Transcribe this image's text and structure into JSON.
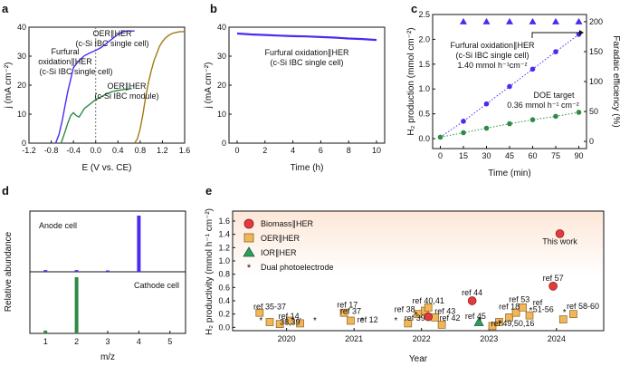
{
  "colors": {
    "purple": "#4a2cf0",
    "teal": "#1f6f8b",
    "green": "#2e8b45",
    "gold": "#a07a10",
    "biomass": "#e23b3b",
    "oer": "#f2b65a",
    "ior": "#2e9c5a",
    "dual": "#2f2fd8",
    "band_top": "#fde7d8"
  },
  "chart_data": [
    {
      "panel": "a",
      "type": "line",
      "xlabel": "E (V vs. CE)",
      "ylabel": "j (mA cm⁻²)",
      "xlim": [
        -1.2,
        1.6
      ],
      "ylim": [
        0,
        40
      ],
      "xticks": [
        "-1.2",
        "-0.8",
        "-0.4",
        "0.0",
        "0.4",
        "0.8",
        "1.2",
        "1.6"
      ],
      "yticks": [
        "0",
        "10",
        "20",
        "30",
        "40"
      ],
      "annotations": [
        "OER∥HER",
        "(c-Si IBC single cell)",
        "Furfural",
        "oxidation∥HER",
        "(c-Si IBC single cell)",
        "OER∥HER",
        "(c-Si IBC module)"
      ],
      "series": [
        {
          "name": "Furfural oxidation∥HER (c-Si IBC single cell)",
          "x": [
            -0.72,
            -0.66,
            -0.6,
            -0.55,
            -0.5,
            -0.45,
            -0.4,
            -0.3,
            -0.2,
            -0.1,
            0.0,
            0.1,
            0.2,
            0.3,
            0.4,
            0.45,
            0.48,
            0.5,
            0.55,
            0.6,
            0.7
          ],
          "y": [
            0,
            3,
            8,
            13,
            18,
            22,
            26,
            28.5,
            30.2,
            31.2,
            32,
            33,
            34.5,
            36,
            37.5,
            38,
            38.3,
            38.5,
            38.6,
            38.7,
            38.7
          ]
        },
        {
          "name": "OER∥HER (c-Si IBC single cell)",
          "x": [
            0.7,
            0.75,
            0.8,
            0.85,
            0.9,
            0.95,
            1.0,
            1.05,
            1.1,
            1.15,
            1.2,
            1.25,
            1.3,
            1.35,
            1.4,
            1.45,
            1.5,
            1.6
          ],
          "y": [
            0,
            1.5,
            5,
            10,
            16,
            21,
            25,
            28.5,
            31,
            33.5,
            35,
            36.2,
            37,
            37.6,
            38,
            38.2,
            38.4,
            38.5
          ]
        },
        {
          "name": "OER∥HER (c-Si IBC module)",
          "x": [
            -0.62,
            -0.55,
            -0.5,
            -0.45,
            -0.4,
            -0.35,
            -0.3,
            -0.25,
            -0.2,
            -0.1,
            0.0,
            0.1,
            0.2,
            0.3,
            0.35,
            0.4,
            0.5,
            0.6,
            0.65
          ],
          "y": [
            0,
            4,
            7,
            9.5,
            10.5,
            9.5,
            9,
            10.5,
            12,
            13.5,
            15,
            16,
            17,
            17.8,
            18,
            18.2,
            18.5,
            18.7,
            18.8
          ]
        }
      ]
    },
    {
      "panel": "b",
      "type": "line",
      "xlabel": "Time (h)",
      "ylabel": "j (mA cm⁻²)",
      "xlim": [
        0,
        10
      ],
      "ylim": [
        0,
        40
      ],
      "xticks": [
        "0",
        "2",
        "4",
        "6",
        "8",
        "10"
      ],
      "yticks": [
        "0",
        "10",
        "20",
        "30",
        "40"
      ],
      "annotations": [
        "Furfural oxidation∥HER",
        "(c-Si IBC single cell)"
      ],
      "series": [
        {
          "name": "Furfural oxidation∥HER",
          "x": [
            0,
            1,
            2,
            3,
            4,
            5,
            6,
            7,
            8,
            9,
            10
          ],
          "y": [
            37.8,
            37.5,
            37.3,
            37.1,
            36.9,
            36.8,
            36.6,
            36.4,
            36.1,
            35.9,
            35.6
          ]
        }
      ]
    },
    {
      "panel": "c",
      "type": "scatter",
      "xlabel": "Time (min)",
      "ylabel": "H₂ production (mmol cm⁻²)",
      "ylabel_right": "Faradaic efficiency (%)",
      "xlim": [
        -5,
        95
      ],
      "ylim": [
        -0.2,
        2.5
      ],
      "ylim_right": [
        -12,
        212
      ],
      "xticks": [
        "0",
        "15",
        "30",
        "45",
        "60",
        "75",
        "90"
      ],
      "yticks": [
        "0.0",
        "0.5",
        "1.0",
        "1.5",
        "2.0",
        "2.5"
      ],
      "yticks_right": [
        "0",
        "50",
        "100",
        "150",
        "200"
      ],
      "annotations": [
        "Furfural oxidation∥HER",
        "(c-Si IBC single cell)",
        "1.40 mmol h⁻¹cm⁻²",
        "DOE target",
        "0.36 mmol h⁻¹ cm⁻²"
      ],
      "series": [
        {
          "name": "Furfural oxidation∥HER H₂ production",
          "x": [
            0,
            15,
            30,
            45,
            60,
            75,
            90
          ],
          "y": [
            0.03,
            0.35,
            0.7,
            1.05,
            1.4,
            1.75,
            2.1
          ]
        },
        {
          "name": "DOE target",
          "x": [
            0,
            15,
            30,
            45,
            60,
            75,
            90
          ],
          "y": [
            0.03,
            0.12,
            0.21,
            0.3,
            0.38,
            0.45,
            0.53
          ]
        },
        {
          "name": "Faradaic efficiency",
          "x": [
            15,
            30,
            45,
            60,
            75,
            90
          ],
          "y": [
            200,
            200,
            200,
            200,
            200,
            200
          ]
        }
      ]
    },
    {
      "panel": "d",
      "type": "bar",
      "xlabel": "m/z",
      "ylabel": "Relative abundance",
      "xlim": [
        0.5,
        5.5
      ],
      "xticks": [
        "1",
        "2",
        "3",
        "4",
        "5"
      ],
      "series": [
        {
          "name": "Anode cell",
          "x": [
            1,
            2,
            3,
            4
          ],
          "y": [
            3,
            3,
            2,
            100
          ]
        },
        {
          "name": "Cathode cell",
          "x": [
            1,
            2
          ],
          "y": [
            5,
            100
          ]
        }
      ]
    },
    {
      "panel": "e",
      "type": "scatter",
      "xlabel": "Year",
      "ylabel": "H₂ productivity (mmol h⁻¹ cm⁻²)",
      "xlim": [
        2019.2,
        2024.7
      ],
      "ylim": [
        -0.05,
        1.75
      ],
      "xticks": [
        "2020",
        "2021",
        "2022",
        "2023",
        "2024"
      ],
      "yticks": [
        "0.0",
        "0.2",
        "0.4",
        "0.6",
        "0.8",
        "1.0",
        "1.2",
        "1.4",
        "1.6"
      ],
      "legend": [
        "Biomass∥HER",
        "OER∥HER",
        "IOR∥HER",
        "Dual photoelectrode"
      ],
      "series": [
        {
          "name": "Biomass∥HER",
          "x": [
            2022.1,
            2022.75,
            2023.95,
            2024.05
          ],
          "y": [
            0.16,
            0.4,
            0.62,
            1.41
          ]
        },
        {
          "name": "OER∥HER",
          "x": [
            2019.6,
            2019.75,
            2019.9,
            2020.05,
            2020.2,
            2020.85,
            2020.95,
            2021.8,
            2021.95,
            2022.05,
            2022.1,
            2022.2,
            2022.3,
            2023.05,
            2023.15,
            2023.3,
            2023.4,
            2023.5,
            2023.6,
            2024.1,
            2024.25
          ],
          "y": [
            0.22,
            0.08,
            0.05,
            0.1,
            0.06,
            0.22,
            0.1,
            0.06,
            0.2,
            0.25,
            0.3,
            0.15,
            0.04,
            0.02,
            0.08,
            0.15,
            0.22,
            0.3,
            0.18,
            0.12,
            0.2
          ]
        },
        {
          "name": "IOR∥HER",
          "x": [
            2022.85
          ],
          "y": [
            0.08
          ]
        },
        {
          "name": "Dual photoelectrode",
          "x": [
            2019.7,
            2020.5,
            2021.2,
            2021.7,
            2022.0,
            2022.95,
            2023.25,
            2023.7,
            2024.2
          ],
          "y": [
            0.1,
            0.1,
            0.1,
            0.1,
            0.18,
            0.1,
            0.05,
            0.25,
            0.22
          ]
        }
      ],
      "annotations": [
        "This work",
        "ref 57",
        "ref 44",
        "ref 53",
        "ref 18",
        "ref",
        "51-56",
        "ref 58-60",
        "ref 45",
        "ref 49,50,16",
        "ref 40,41",
        "ref 43",
        "ref 42",
        "ref 38",
        "ref 39",
        "ref 17",
        "ref 37",
        "ref 12",
        "ref 35-37",
        "ref 14,",
        "38,39"
      ]
    }
  ]
}
